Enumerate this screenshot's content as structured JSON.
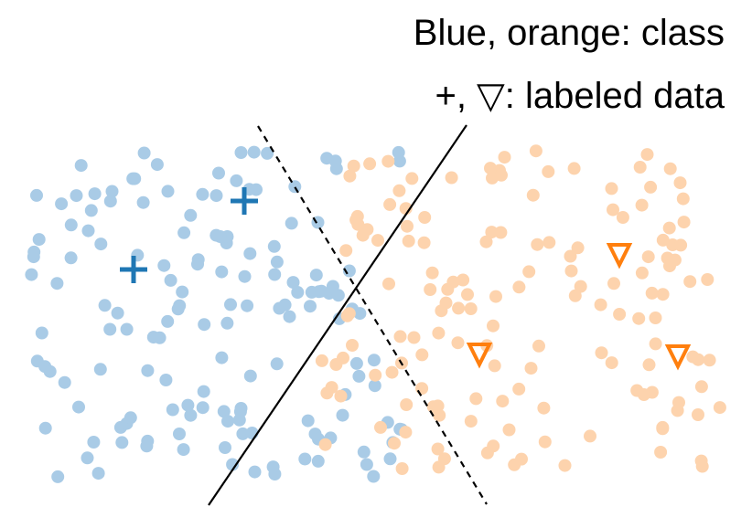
{
  "legend": {
    "line1": "Blue, orange: class",
    "line2": "+, ▽: labeled data"
  },
  "colors": {
    "blue_unlabeled": "#a9cbe6",
    "orange_unlabeled": "#fdd3ad",
    "blue_labeled": "#1f77b4",
    "orange_labeled": "#ff7f0e",
    "solid_boundary": "#000000",
    "dashed_boundary": "#000000"
  },
  "diagram": {
    "classes": [
      "blue",
      "orange"
    ],
    "labeled_markers": {
      "blue": "plus",
      "orange": "down-triangle"
    },
    "boundaries": [
      {
        "name": "solid",
        "style": "solid"
      },
      {
        "name": "dashed",
        "style": "dashed"
      }
    ],
    "counts": {
      "blue_points": 150,
      "orange_points": 150,
      "blue_labeled": 2,
      "orange_labeled": 3
    }
  }
}
